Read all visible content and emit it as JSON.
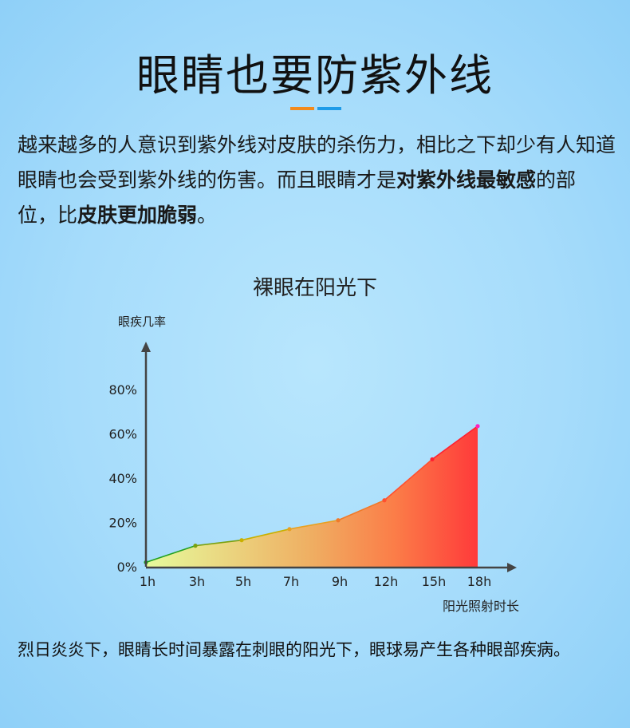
{
  "header": {
    "title": "眼睛也要防紫外线",
    "accent_colors": [
      "#f28a1c",
      "#1e9be8"
    ]
  },
  "intro": {
    "line1": "越来越多的人意识到紫外线对皮肤的杀伤力，相比之下却少有人知道眼睛也会受到紫外线的伤害。而且眼睛才是",
    "bold1": "对紫外线最敏感",
    "mid": "的部位，比",
    "bold2": "皮肤更加脆弱",
    "end": "。"
  },
  "chart_data": {
    "type": "area",
    "title": "裸眼在阳光下",
    "xlabel": "阳光照射时长",
    "ylabel": "眼疾几率",
    "categories": [
      "1h",
      "3h",
      "5h",
      "7h",
      "9h",
      "12h",
      "15h",
      "18h"
    ],
    "values": [
      2,
      9.5,
      12,
      17,
      21,
      30,
      48.5,
      63.5
    ],
    "yticks": [
      "0%",
      "20%",
      "40%",
      "60%",
      "80%"
    ],
    "ylim": [
      0,
      80
    ],
    "grid": false,
    "colors": [
      "#22a020",
      "#7aa010",
      "#c8b000",
      "#e8a020",
      "#f07a2a",
      "#ff5030",
      "#ff2030",
      "#ff20c0"
    ]
  },
  "footer": {
    "text": "烈日炎炎下，眼睛长时间暴露在刺眼的阳光下，眼球易产生各种眼部疾病。"
  }
}
